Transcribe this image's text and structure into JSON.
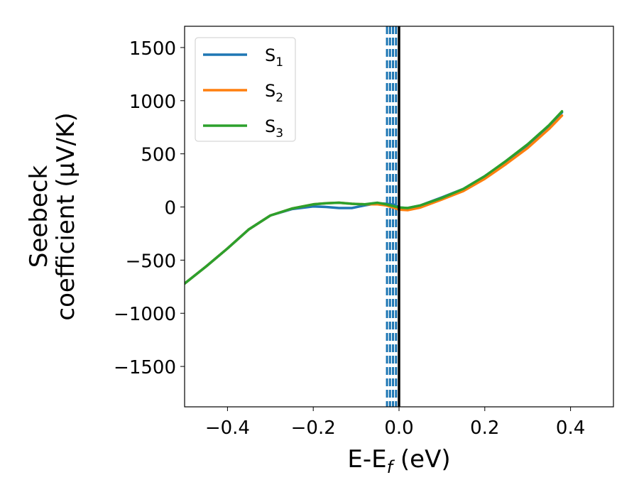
{
  "chart_data": {
    "type": "line",
    "xlabel": "E-E",
    "xlabel_sub": "f",
    "xlabel_unit": " (eV)",
    "ylabel_line1": "Seebeck",
    "ylabel_line2": "coefficient  (μV/K)",
    "xlim": [
      -0.5,
      0.5
    ],
    "ylim": [
      -1880,
      1700
    ],
    "xticks": [
      -0.4,
      -0.2,
      0.0,
      0.2,
      0.4
    ],
    "xtick_labels": [
      "−0.4",
      "−0.2",
      "0.0",
      "0.2",
      "0.4"
    ],
    "yticks": [
      1500,
      1000,
      500,
      0,
      -500,
      -1000,
      -1500
    ],
    "ytick_labels": [
      "1500",
      "1000",
      "500",
      "0",
      "−500",
      "−1000",
      "−1500"
    ],
    "legend_position": "upper-left",
    "series": [
      {
        "name": "S",
        "sub": "1",
        "color": "#1f77b4",
        "x": [
          -0.5,
          -0.45,
          -0.4,
          -0.35,
          -0.3,
          -0.25,
          -0.2,
          -0.17,
          -0.14,
          -0.11,
          -0.08,
          -0.05,
          -0.03,
          -0.01,
          0.0,
          0.02,
          0.05,
          0.1,
          0.15,
          0.2,
          0.25,
          0.3,
          0.35,
          0.38
        ],
        "y": [
          -720,
          -560,
          -390,
          -210,
          -80,
          -20,
          5,
          0,
          -10,
          -10,
          15,
          35,
          30,
          20,
          -5,
          -10,
          15,
          90,
          170,
          290,
          430,
          580,
          760,
          890
        ]
      },
      {
        "name": "S",
        "sub": "2",
        "color": "#ff7f0e",
        "x": [
          -0.5,
          -0.45,
          -0.4,
          -0.35,
          -0.3,
          -0.25,
          -0.2,
          -0.17,
          -0.14,
          -0.11,
          -0.08,
          -0.05,
          -0.03,
          -0.01,
          0.0,
          0.02,
          0.05,
          0.1,
          0.15,
          0.2,
          0.25,
          0.3,
          0.35,
          0.38
        ],
        "y": [
          -720,
          -560,
          -390,
          -210,
          -80,
          -15,
          25,
          35,
          40,
          30,
          25,
          25,
          15,
          -10,
          -25,
          -30,
          -5,
          70,
          150,
          265,
          405,
          555,
          735,
          860
        ]
      },
      {
        "name": "S",
        "sub": "3",
        "color": "#2ca02c",
        "x": [
          -0.5,
          -0.45,
          -0.4,
          -0.35,
          -0.3,
          -0.25,
          -0.2,
          -0.17,
          -0.14,
          -0.11,
          -0.08,
          -0.05,
          -0.03,
          -0.01,
          0.0,
          0.02,
          0.05,
          0.1,
          0.15,
          0.2,
          0.25,
          0.3,
          0.35,
          0.38
        ],
        "y": [
          -720,
          -560,
          -390,
          -210,
          -80,
          -15,
          25,
          35,
          40,
          30,
          25,
          40,
          25,
          5,
          -5,
          -10,
          15,
          85,
          170,
          290,
          435,
          590,
          770,
          900
        ]
      }
    ],
    "reference_lines": {
      "solid_x": 0.0,
      "solid_color": "#000000",
      "dashed_x": [
        -0.028,
        -0.021,
        -0.014,
        -0.007
      ],
      "dashed_color": "#1f77b4"
    }
  }
}
